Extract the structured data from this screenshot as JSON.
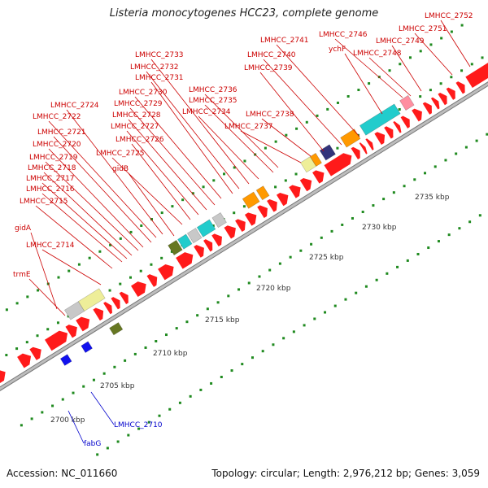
{
  "title": "Listeria monocytogenes HCC23, complete genome",
  "footer": {
    "accession": "Accession: NC_011660",
    "topology": "Topology: circular; Length: 2,976,212 bp; Genes: 3,059"
  },
  "colors": {
    "forward_gene": "#ff1a1a",
    "reverse_gene": "#1111ee",
    "backbone": "#bdbdbd",
    "tick": "#1f8a1f",
    "label_red": "#cc0000",
    "label_blue": "#0000cc",
    "cyan": "#22cccc",
    "orange": "#ff9900",
    "yellow": "#eeee99",
    "olive": "#667722",
    "gray": "#c8c8c8",
    "navy": "#33337a",
    "pink": "#ff8fa0"
  },
  "kbp_labels": [
    "2700 kbp",
    "2705 kbp",
    "2710 kbp",
    "2715 kbp",
    "2720 kbp",
    "2725 kbp",
    "2730 kbp",
    "2735 kbp"
  ],
  "gene_labels_red": [
    "LMHCC_2752",
    "LMHCC_2751",
    "LMHCC_2749",
    "LMHCC_2748",
    "LMHCC_2746",
    "ychF",
    "LMHCC_2741",
    "LMHCC_2740",
    "LMHCC_2739",
    "LMHCC_2738",
    "LMHCC_2737",
    "LMHCC_2736",
    "LMHCC_2735",
    "LMHCC_2734",
    "LMHCC_2733",
    "LMHCC_2732",
    "LMHCC_2731",
    "LMHCC_2730",
    "LMHCC_2729",
    "LMHCC_2728",
    "LMHCC_2727",
    "LMHCC_2726",
    "LMHCC_2725",
    "LMHCC_2724",
    "LMHCC_2722",
    "LMHCC_2721",
    "LMHCC_2720",
    "LMHCC_2719",
    "LMHCC_2718",
    "LMHCC_2717",
    "LMHCC_2716",
    "LMHCC_2715",
    "gidB",
    "gidA",
    "LMHCC_2714",
    "trmE"
  ],
  "gene_labels_blue": [
    "LMHCC_2710",
    "fabG"
  ]
}
